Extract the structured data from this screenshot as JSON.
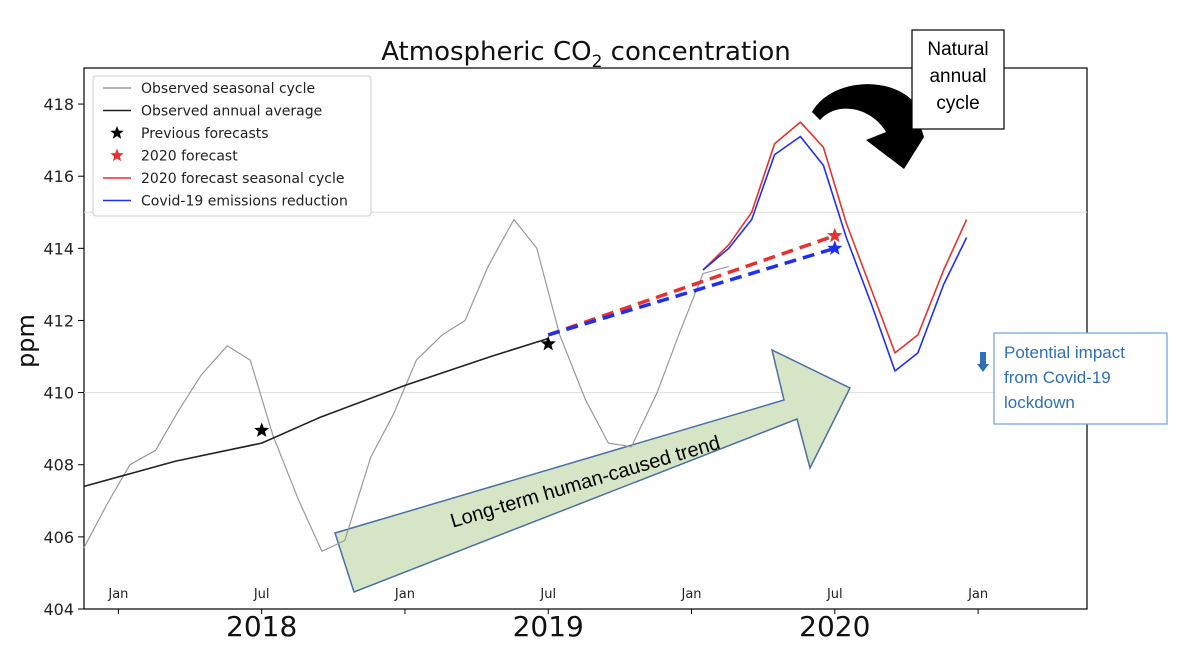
{
  "chart_data": {
    "type": "line",
    "title_main": "Atmospheric CO",
    "title_sub": "2",
    "title_rest": " concentration",
    "ylabel": "ppm",
    "ylim": [
      404,
      419
    ],
    "xlim": [
      2017.38,
      2020.88
    ],
    "y_ticks": [
      "404",
      "406",
      "408",
      "410",
      "412",
      "414",
      "416",
      "418"
    ],
    "month_ticks": [
      {
        "label": "Jan",
        "x": 2017.5
      },
      {
        "label": "Jul",
        "x": 2018.0
      },
      {
        "label": "Jan",
        "x": 2018.5
      },
      {
        "label": "Jul",
        "x": 2019.0
      },
      {
        "label": "Jan",
        "x": 2019.5
      },
      {
        "label": "Jul",
        "x": 2020.0
      },
      {
        "label": "Jan",
        "x": 2020.5
      }
    ],
    "year_ticks": [
      {
        "label": "2018",
        "x": 2018.0
      },
      {
        "label": "2019",
        "x": 2019.0
      },
      {
        "label": "2020",
        "x": 2020.0
      }
    ],
    "hgrid": [
      410,
      415
    ],
    "series": [
      {
        "name": "Observed seasonal cycle",
        "color": "#999999",
        "style": "solid",
        "x": [
          2017.38,
          2017.46,
          2017.54,
          2017.63,
          2017.71,
          2017.79,
          2017.88,
          2017.96,
          2018.04,
          2018.13,
          2018.21,
          2018.29,
          2018.38,
          2018.46,
          2018.54,
          2018.63,
          2018.71,
          2018.79,
          2018.88,
          2018.96,
          2019.04,
          2019.13,
          2019.21,
          2019.29,
          2019.38,
          2019.46,
          2019.54,
          2019.63
        ],
        "y": [
          405.7,
          406.9,
          408.0,
          408.4,
          409.5,
          410.5,
          411.3,
          410.9,
          408.8,
          407.0,
          405.6,
          405.9,
          408.2,
          409.4,
          410.9,
          411.6,
          412.0,
          413.5,
          414.8,
          414.0,
          411.6,
          409.8,
          408.6,
          408.5,
          410.0,
          411.7,
          413.3,
          413.5
        ]
      },
      {
        "name": "Observed annual average",
        "color": "#222222",
        "style": "solid",
        "x": [
          2017.38,
          2017.7,
          2018.0,
          2018.2,
          2018.5,
          2018.8,
          2019.0
        ],
        "y": [
          407.4,
          408.1,
          408.6,
          409.3,
          410.2,
          411.0,
          411.5
        ]
      },
      {
        "name": "2020 forecast seasonal cycle",
        "color": "#e8312f",
        "style": "solid",
        "x": [
          2019.54,
          2019.63,
          2019.71,
          2019.79,
          2019.88,
          2019.96,
          2020.04,
          2020.13,
          2020.21,
          2020.29,
          2020.38,
          2020.46
        ],
        "y": [
          413.4,
          414.1,
          415.0,
          416.9,
          417.5,
          416.8,
          414.7,
          412.8,
          411.1,
          411.6,
          413.4,
          414.8
        ]
      },
      {
        "name": "Covid-19 emissions reduction",
        "color": "#1f2ff0",
        "style": "solid",
        "x": [
          2019.54,
          2019.63,
          2019.71,
          2019.79,
          2019.88,
          2019.96,
          2020.04,
          2020.13,
          2020.21,
          2020.29,
          2020.38,
          2020.46
        ],
        "y": [
          413.4,
          414.0,
          414.8,
          416.6,
          417.1,
          416.3,
          414.3,
          412.4,
          410.6,
          411.1,
          413.0,
          414.3
        ]
      },
      {
        "name": "2020 forecast trend",
        "color": "#e8312f",
        "style": "dashed",
        "x": [
          2019.0,
          2020.0
        ],
        "y": [
          411.6,
          414.35
        ]
      },
      {
        "name": "Covid-19 trend",
        "color": "#1f2ff0",
        "style": "dashed",
        "x": [
          2019.0,
          2020.0
        ],
        "y": [
          411.6,
          414.0
        ]
      }
    ],
    "markers": [
      {
        "name": "previous-forecast-2018",
        "x": 2018.0,
        "y": 408.95,
        "color": "#000000"
      },
      {
        "name": "previous-forecast-2019",
        "x": 2019.0,
        "y": 411.35,
        "color": "#000000"
      },
      {
        "name": "forecast-2020",
        "x": 2020.0,
        "y": 414.35,
        "color": "#e8312f"
      },
      {
        "name": "covid-forecast-2020",
        "x": 2020.0,
        "y": 414.0,
        "color": "#1f2ff0"
      }
    ],
    "legend": {
      "placement": "top-left",
      "entries": [
        {
          "label": "Observed seasonal cycle",
          "kind": "line",
          "color": "#999999"
        },
        {
          "label": "Observed annual average",
          "kind": "line",
          "color": "#222222"
        },
        {
          "label": "Previous forecasts",
          "kind": "star",
          "color": "#000000"
        },
        {
          "label": "2020 forecast",
          "kind": "star",
          "color": "#e8312f"
        },
        {
          "label": "2020 forecast seasonal cycle",
          "kind": "line",
          "color": "#e8312f"
        },
        {
          "label": "Covid-19 emissions reduction",
          "kind": "line",
          "color": "#1f2ff0"
        }
      ]
    },
    "annotations": {
      "natural_cycle": [
        "Natural",
        "annual",
        "cycle"
      ],
      "trend_label": "Long-term human-caused trend",
      "impact": [
        "Potential impact",
        "from Covid-19",
        "lockdown"
      ]
    }
  }
}
